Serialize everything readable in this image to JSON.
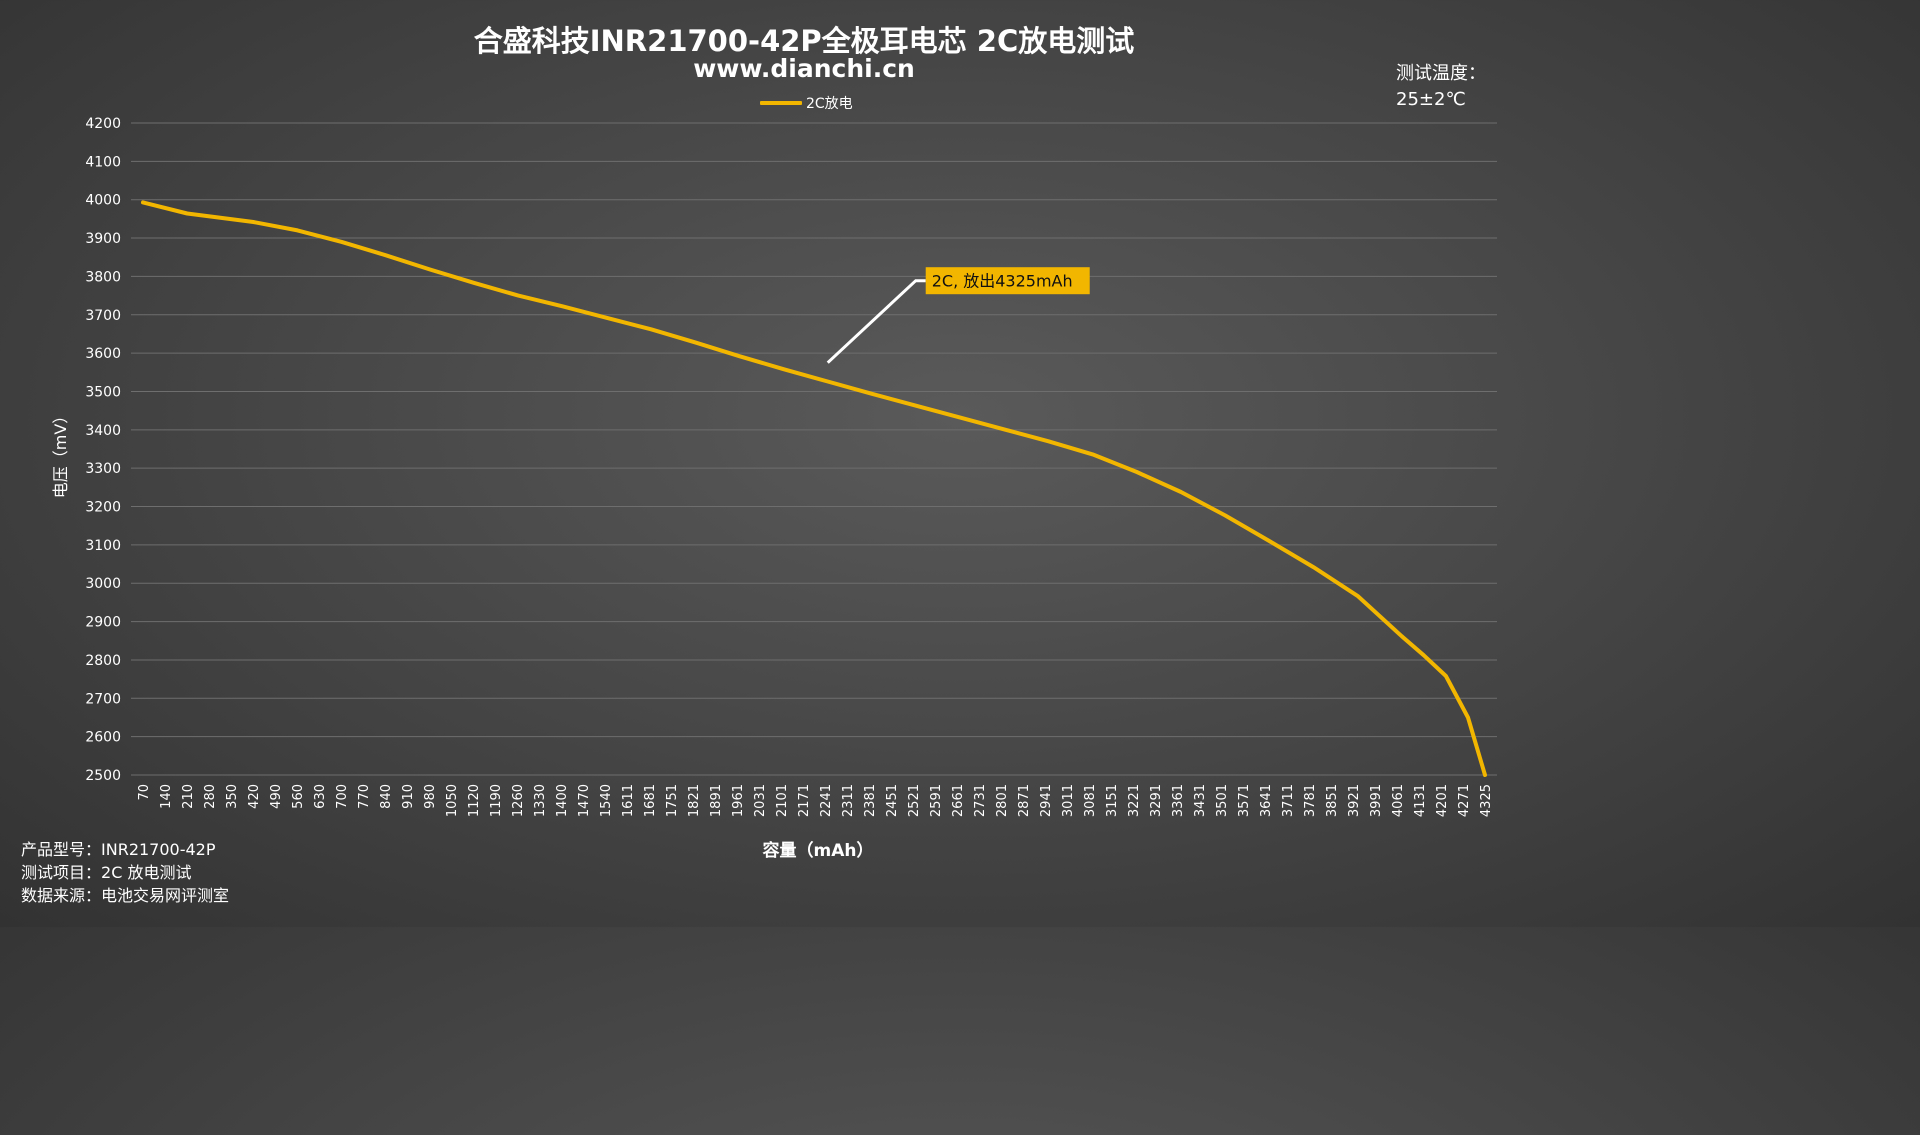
{
  "chart_data": {
    "type": "line",
    "title": "合盛科技INR21700-42P全极耳电芯 2C放电测试",
    "subtitle": "www.dianchi.cn",
    "xlabel": "容量（mAh）",
    "ylabel": "电压（mV）",
    "ylim": [
      2500,
      4200
    ],
    "yticks": [
      4200,
      4100,
      4000,
      3900,
      3800,
      3700,
      3600,
      3500,
      3400,
      3300,
      3200,
      3100,
      3000,
      2900,
      2800,
      2700,
      2600,
      2500
    ],
    "xlim": [
      70,
      4325
    ],
    "xtick_labels": [
      "70",
      "140",
      "210",
      "280",
      "350",
      "420",
      "490",
      "560",
      "630",
      "700",
      "770",
      "840",
      "910",
      "980",
      "1050",
      "1120",
      "1190",
      "1260",
      "1330",
      "1400",
      "1470",
      "1540",
      "1611",
      "1681",
      "1751",
      "1821",
      "1891",
      "1961",
      "2031",
      "2101",
      "2171",
      "2241",
      "2311",
      "2381",
      "2451",
      "2521",
      "2591",
      "2661",
      "2731",
      "2801",
      "2871",
      "2941",
      "3011",
      "3081",
      "3151",
      "3221",
      "3291",
      "3361",
      "3431",
      "3501",
      "3571",
      "3641",
      "3711",
      "3781",
      "3851",
      "3921",
      "3991",
      "4061",
      "4131",
      "4201",
      "4271",
      "4325"
    ],
    "grid": true,
    "legend_position": "top-center",
    "series": [
      {
        "name": "2C放电",
        "color": "#f2b600",
        "x": [
          70,
          210,
          420,
          560,
          700,
          840,
          980,
          1120,
          1260,
          1400,
          1540,
          1681,
          1821,
          1961,
          2101,
          2241,
          2381,
          2521,
          2661,
          2801,
          2941,
          3081,
          3221,
          3361,
          3501,
          3641,
          3781,
          3921,
          4061,
          4131,
          4201,
          4271,
          4325
        ],
        "y": [
          3993,
          3964,
          3942,
          3920,
          3890,
          3855,
          3818,
          3783,
          3750,
          3722,
          3692,
          3662,
          3628,
          3592,
          3558,
          3526,
          3494,
          3463,
          3432,
          3401,
          3370,
          3336,
          3290,
          3238,
          3177,
          3110,
          3042,
          2967,
          2862,
          2812,
          2758,
          2650,
          2500
        ]
      }
    ],
    "annotation": {
      "text": "2C, 放出4325mAh",
      "x": 2241,
      "y": 3575
    }
  },
  "temperature_note": {
    "label": "测试温度：",
    "value": "25±2℃"
  },
  "info": [
    {
      "label": "产品型号：",
      "value": "INR21700-42P"
    },
    {
      "label": "测试项目：",
      "value": "2C 放电测试"
    },
    {
      "label": "数据来源：",
      "value": "电池交易网评测室"
    }
  ]
}
